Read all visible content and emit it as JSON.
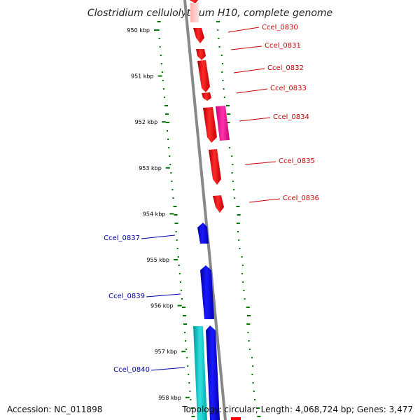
{
  "title": "Clostridium cellulolyticum H10, complete genome",
  "accession": "Accession: NC_011898",
  "summary": "Topology: circular; Length: 4,068,724 bp; Genes: 3,477",
  "ticks": [
    {
      "label": "950 kbp",
      "kbp": 950
    },
    {
      "label": "951 kbp",
      "kbp": 951
    },
    {
      "label": "952 kbp",
      "kbp": 952
    },
    {
      "label": "953 kbp",
      "kbp": 953
    },
    {
      "label": "954 kbp",
      "kbp": 954
    },
    {
      "label": "955 kbp",
      "kbp": 955
    },
    {
      "label": "956 kbp",
      "kbp": 956
    },
    {
      "label": "957 kbp",
      "kbp": 957
    },
    {
      "label": "958 kbp",
      "kbp": 958
    }
  ],
  "genes": [
    {
      "label": "Ccel_0830",
      "strand": "reverse",
      "color": "#ff0000"
    },
    {
      "label": "Ccel_0831",
      "strand": "reverse",
      "color": "#ff0000"
    },
    {
      "label": "Ccel_0832",
      "strand": "reverse",
      "color": "#ff0000"
    },
    {
      "label": "Ccel_0833",
      "strand": "reverse",
      "color": "#ff0000"
    },
    {
      "label": "Ccel_0834",
      "strand": "reverse",
      "color": "#ff0000"
    },
    {
      "label": "Ccel_0835",
      "strand": "reverse",
      "color": "#ff0000"
    },
    {
      "label": "Ccel_0836",
      "strand": "reverse",
      "color": "#ff0000"
    },
    {
      "label": "Ccel_0837",
      "strand": "forward",
      "color": "#0000ff"
    },
    {
      "label": "Ccel_0839",
      "strand": "forward",
      "color": "#0000ff"
    },
    {
      "label": "Ccel_0840",
      "strand": "forward",
      "color": "#0000ff"
    }
  ],
  "colors": {
    "cds_reverse": "#ff0000",
    "cds_forward": "#0000ff",
    "rna_magenta": "#ee1199",
    "feature_cyan": "#00c8c8",
    "backbone": "#888888",
    "gc_dots": "#007700",
    "label_red": "#cc0000",
    "label_blue": "#0000aa"
  }
}
